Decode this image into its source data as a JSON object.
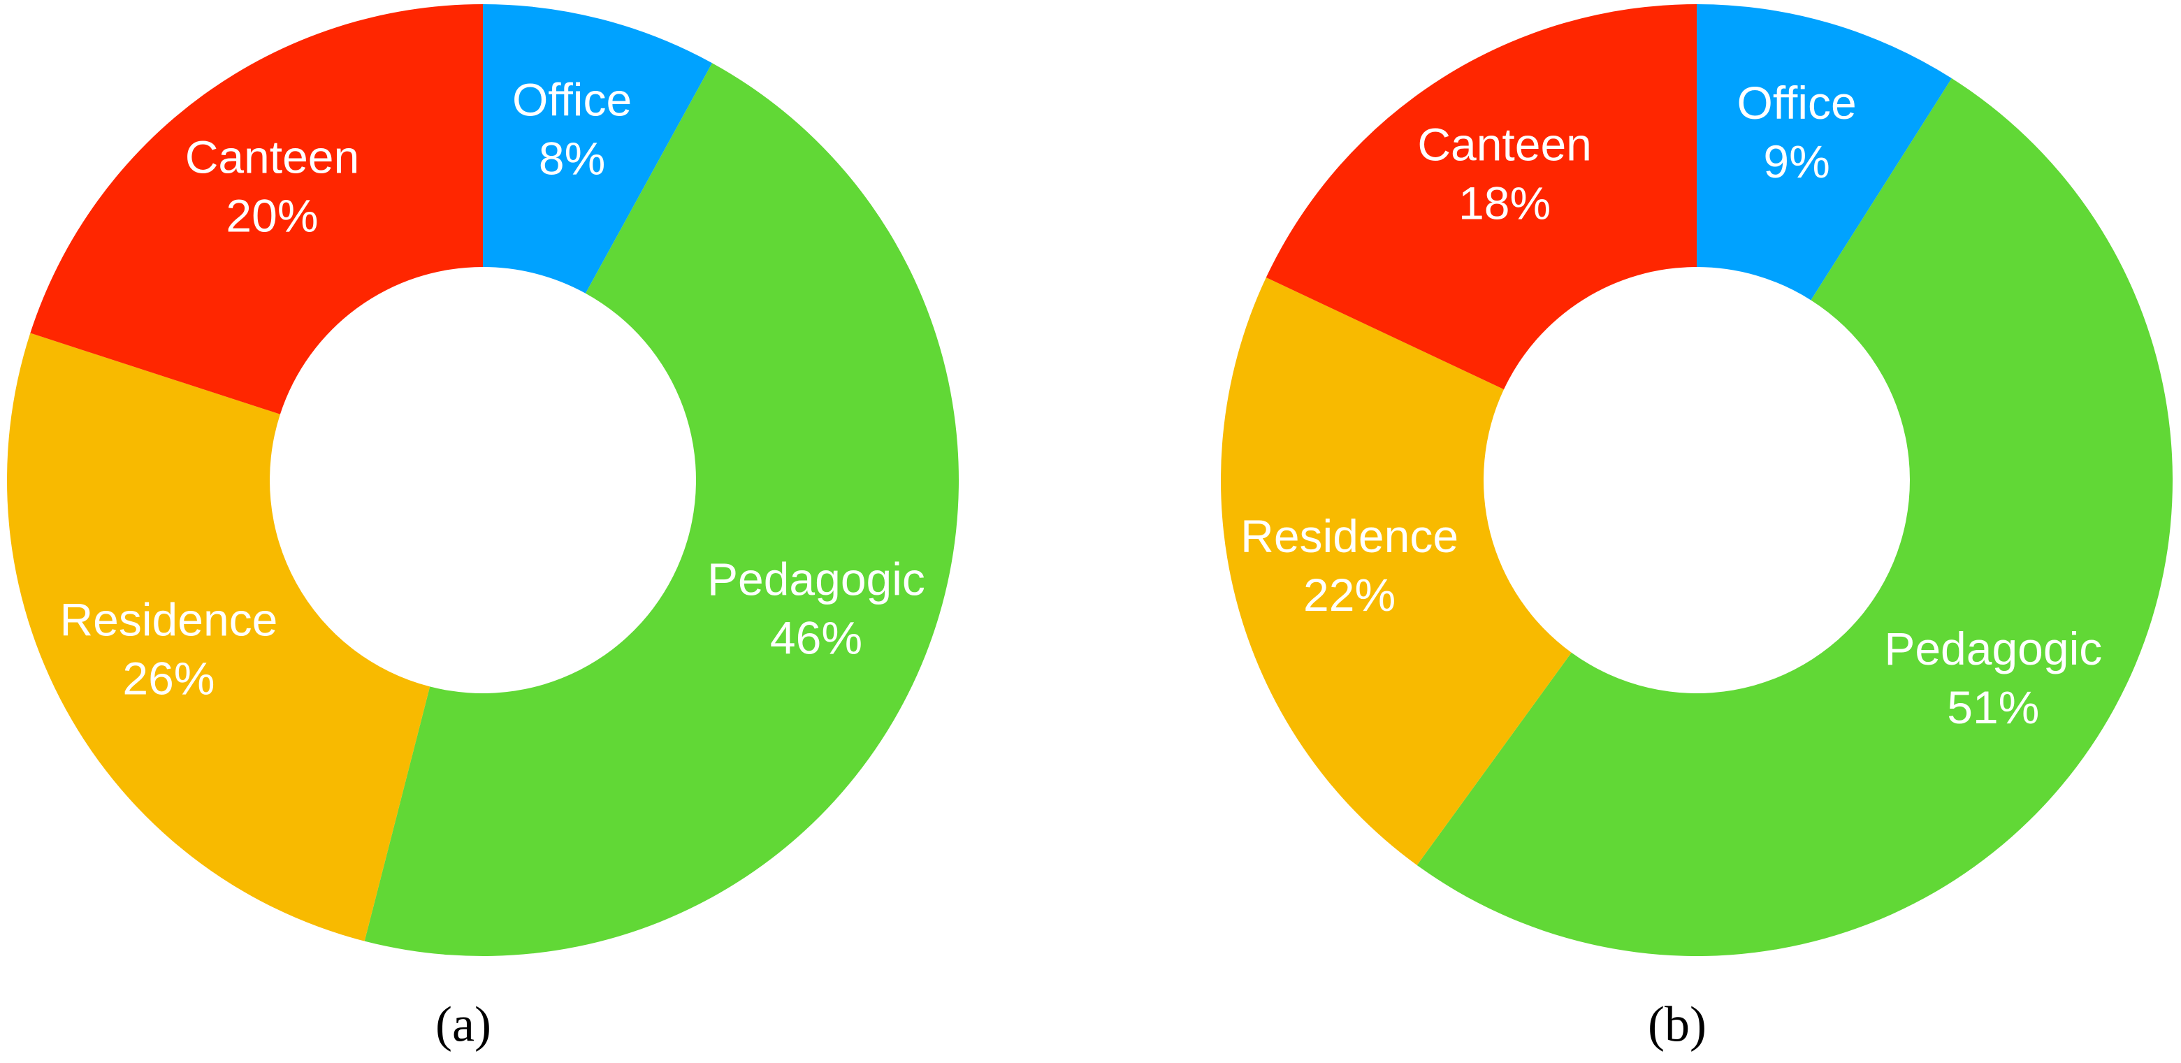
{
  "chart_data": [
    {
      "type": "donut",
      "caption": "(a)",
      "categories": [
        "Office",
        "Pedagogic",
        "Residence",
        "Canteen"
      ],
      "values": [
        8,
        46,
        26,
        20
      ],
      "value_labels": [
        "8%",
        "46%",
        "26%",
        "20%"
      ],
      "colors": [
        "#00a2ff",
        "#61d836",
        "#f8ba00",
        "#ff2600"
      ]
    },
    {
      "type": "donut",
      "caption": "(b)",
      "categories": [
        "Office",
        "Pedagogic",
        "Residence",
        "Canteen"
      ],
      "values": [
        9,
        51,
        22,
        18
      ],
      "value_labels": [
        "9%",
        "51%",
        "22%",
        "18%"
      ],
      "colors": [
        "#00a2ff",
        "#61d836",
        "#f8ba00",
        "#ff2600"
      ]
    }
  ]
}
